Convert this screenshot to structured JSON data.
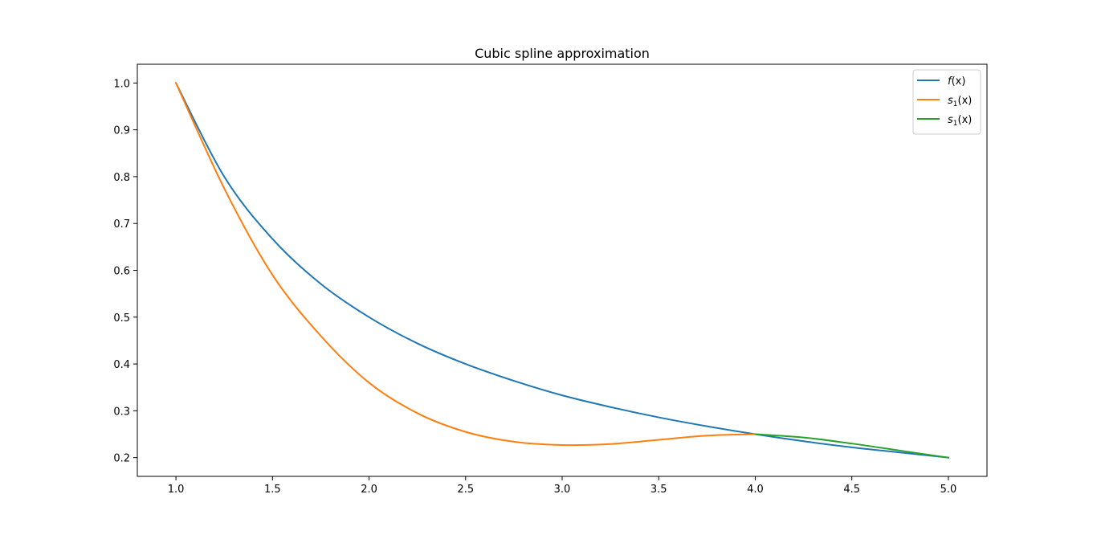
{
  "chart_data": {
    "type": "line",
    "title": "Cubic spline approximation",
    "xlabel": "",
    "ylabel": "",
    "xlim": [
      0.8,
      5.2
    ],
    "ylim": [
      0.16,
      1.04
    ],
    "xticks": [
      1.0,
      1.5,
      2.0,
      2.5,
      3.0,
      3.5,
      4.0,
      4.5,
      5.0
    ],
    "xtick_labels": [
      "1.0",
      "1.5",
      "2.0",
      "2.5",
      "3.0",
      "3.5",
      "4.0",
      "4.5",
      "5.0"
    ],
    "yticks": [
      0.2,
      0.3,
      0.4,
      0.5,
      0.6,
      0.7,
      0.8,
      0.9,
      1.0
    ],
    "ytick_labels": [
      "0.2",
      "0.3",
      "0.4",
      "0.5",
      "0.6",
      "0.7",
      "0.8",
      "0.9",
      "1.0"
    ],
    "grid": false,
    "legend_position": "upper-right",
    "series": [
      {
        "name": "f(x)",
        "legend_label": {
          "base": "f",
          "sub": "",
          "rest": "(x)"
        },
        "color": "#1f77b4",
        "x": [
          1.0,
          1.25,
          1.5,
          1.75,
          2.0,
          2.25,
          2.5,
          2.75,
          3.0,
          3.25,
          3.5,
          3.75,
          4.0,
          4.25,
          4.5,
          4.75,
          5.0
        ],
        "y": [
          1.0,
          0.8,
          0.667,
          0.571,
          0.5,
          0.444,
          0.4,
          0.364,
          0.333,
          0.308,
          0.286,
          0.267,
          0.25,
          0.235,
          0.222,
          0.211,
          0.2
        ]
      },
      {
        "name": "s1(x)",
        "legend_label": {
          "base": "s",
          "sub": "1",
          "rest": "(x)"
        },
        "color": "#ff7f0e",
        "x": [
          1.0,
          1.25,
          1.5,
          1.75,
          2.0,
          2.25,
          2.5,
          2.75,
          3.0,
          3.25,
          3.5,
          3.75,
          4.0
        ],
        "y": [
          1.0,
          0.775,
          0.59,
          0.46,
          0.36,
          0.295,
          0.255,
          0.234,
          0.227,
          0.229,
          0.238,
          0.247,
          0.25
        ]
      },
      {
        "name": "s1(x)",
        "legend_label": {
          "base": "s",
          "sub": "1",
          "rest": "(x)"
        },
        "color": "#2ca02c",
        "x": [
          4.0,
          4.25,
          4.5,
          4.75,
          5.0
        ],
        "y": [
          0.25,
          0.243,
          0.23,
          0.215,
          0.2
        ]
      }
    ]
  }
}
